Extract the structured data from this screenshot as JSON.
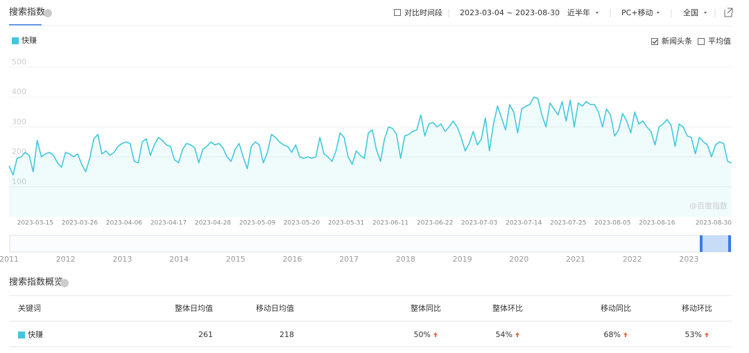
{
  "header": {
    "title": "搜索指数",
    "compare": "对比时间段",
    "date_range": "2023-03-04 ~ 2023-08-30",
    "period": "近半年",
    "device": "PC+移动",
    "region": "全国"
  },
  "chart_data": {
    "type": "line",
    "categories": [
      null,
      null,
      null,
      null,
      null,
      null,
      null,
      null,
      null,
      null,
      null,
      "2023-03-15",
      null,
      null,
      null,
      null,
      null,
      null,
      null,
      null,
      null,
      null,
      "2023-03-26",
      null,
      null,
      null,
      null,
      null,
      null,
      null,
      null,
      null,
      null,
      "2023-04-06",
      null,
      null,
      null,
      null,
      null,
      null,
      null,
      null,
      null,
      null,
      "2023-04-17",
      null,
      null,
      null,
      null,
      null,
      null,
      null,
      null,
      null,
      null,
      "2023-04-28",
      null,
      null,
      null,
      null,
      null,
      null,
      null,
      null,
      null,
      null,
      "2023-05-09",
      null,
      null,
      null,
      null,
      null,
      null,
      null,
      null,
      null,
      null,
      "2023-05-20",
      null,
      null,
      null,
      null,
      null,
      null,
      null,
      null,
      null,
      null,
      "2023-05-31",
      null,
      null,
      null,
      null,
      null,
      null,
      null,
      null,
      null,
      null,
      "2023-06-11",
      null,
      null,
      null,
      null,
      null,
      null,
      null,
      null,
      null,
      null,
      "2023-06-22",
      null,
      null,
      null,
      null,
      null,
      null,
      null,
      null,
      null,
      null,
      "2023-07-03",
      null,
      null,
      null,
      null,
      null,
      null,
      null,
      null,
      null,
      null,
      "2023-07-14",
      null,
      null,
      null,
      null,
      null,
      null,
      null,
      null,
      null,
      null,
      "2023-07-25",
      null,
      null,
      null,
      null,
      null,
      null,
      null,
      null,
      null,
      null,
      "2023-08-05",
      null,
      null,
      null,
      null,
      null,
      null,
      null,
      null,
      null,
      null,
      "2023-08-16",
      null,
      null,
      null,
      null,
      null,
      null,
      null,
      null,
      null,
      null,
      null,
      null,
      null,
      "2023-08-30"
    ],
    "series": [
      {
        "name": "快赚",
        "color": "#3ec8dc",
        "values": [
          170,
          140,
          195,
          200,
          215,
          205,
          150,
          255,
          200,
          210,
          215,
          205,
          180,
          165,
          215,
          210,
          200,
          210,
          175,
          150,
          195,
          260,
          275,
          210,
          220,
          205,
          215,
          235,
          245,
          250,
          245,
          185,
          180,
          250,
          260,
          205,
          240,
          265,
          255,
          240,
          235,
          190,
          180,
          225,
          245,
          240,
          230,
          180,
          225,
          235,
          250,
          240,
          245,
          230,
          200,
          185,
          225,
          245,
          200,
          160,
          235,
          250,
          240,
          180,
          215,
          275,
          265,
          250,
          240,
          235,
          215,
          240,
          200,
          195,
          200,
          195,
          200,
          265,
          210,
          200,
          185,
          220,
          280,
          265,
          200,
          175,
          220,
          205,
          195,
          280,
          290,
          225,
          185,
          260,
          300,
          295,
          275,
          195,
          270,
          275,
          285,
          290,
          340,
          270,
          310,
          315,
          300,
          310,
          285,
          300,
          320,
          300,
          265,
          220,
          245,
          285,
          240,
          260,
          330,
          220,
          310,
          370,
          330,
          290,
          375,
          350,
          280,
          360,
          370,
          375,
          400,
          395,
          340,
          300,
          380,
          360,
          340,
          385,
          320,
          390,
          300,
          380,
          370,
          385,
          375,
          375,
          350,
          300,
          360,
          340,
          270,
          290,
          345,
          320,
          280,
          350,
          310,
          320,
          300,
          285,
          240,
          300,
          310,
          325,
          305,
          235,
          310,
          300,
          270,
          265,
          210,
          265,
          250,
          240,
          200,
          240,
          250,
          245,
          185,
          180
        ]
      }
    ],
    "ylim": [
      0,
      500
    ],
    "yticks": [
      100,
      200,
      300,
      400,
      500
    ],
    "grid": true,
    "options": [
      {
        "label": "新闻头条",
        "checked": true
      },
      {
        "label": "平均值",
        "checked": false
      }
    ],
    "watermark": "@百度指数"
  },
  "navigator": {
    "years": [
      "2011",
      "2012",
      "2013",
      "2014",
      "2015",
      "2016",
      "2017",
      "2018",
      "2019",
      "2020",
      "2021",
      "2022",
      "2023"
    ]
  },
  "overview": {
    "title": "搜索指数概览",
    "columns": [
      "关键词",
      "整体日均值",
      "移动日均值",
      "整体同比",
      "整体环比",
      "移动同比",
      "移动环比"
    ],
    "rows": [
      [
        "快赚",
        "261",
        "218",
        "50%",
        "54%",
        "68%",
        "53%"
      ]
    ]
  }
}
